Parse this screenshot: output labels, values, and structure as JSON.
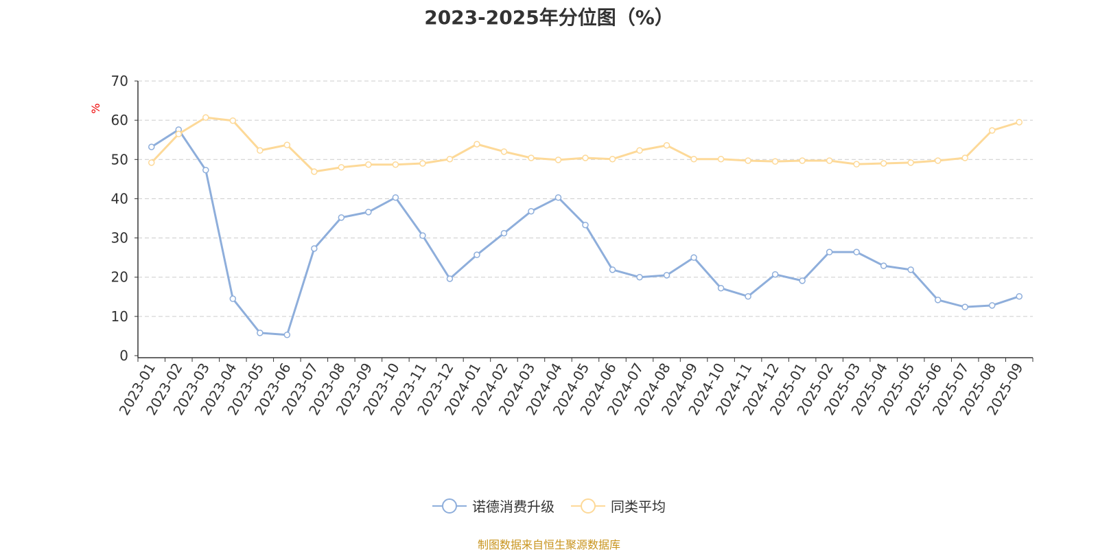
{
  "chart_data": {
    "type": "line",
    "title": "2023-2025年分位图（%）",
    "ylabel": "%",
    "xlabel": "",
    "ylim": [
      0,
      70
    ],
    "yticks": [
      0,
      10,
      20,
      30,
      40,
      50,
      60,
      70
    ],
    "grid": true,
    "legend_position": "bottom-center",
    "categories": [
      "2023-01",
      "2023-02",
      "2023-03",
      "2023-04",
      "2023-05",
      "2023-06",
      "2023-07",
      "2023-08",
      "2023-09",
      "2023-10",
      "2023-11",
      "2023-12",
      "2024-01",
      "2024-02",
      "2024-03",
      "2024-04",
      "2024-05",
      "2024-06",
      "2024-07",
      "2024-08",
      "2024-09",
      "2024-10",
      "2024-11",
      "2024-12",
      "2025-01",
      "2025-02",
      "2025-03",
      "2025-04",
      "2025-05",
      "2025-06",
      "2025-07",
      "2025-08",
      "2025-09"
    ],
    "series": [
      {
        "name": "诺德消费升级",
        "color": "#8eaedb",
        "values": [
          53.2,
          57.6,
          47.3,
          14.5,
          5.8,
          5.3,
          27.3,
          35.2,
          36.6,
          40.3,
          30.6,
          19.6,
          25.7,
          31.2,
          36.8,
          40.3,
          33.3,
          21.9,
          20.0,
          20.5,
          25.0,
          17.2,
          15.1,
          20.7,
          19.1,
          26.4,
          26.4,
          22.9,
          21.9,
          14.2,
          12.4,
          12.8,
          15.1
        ]
      },
      {
        "name": "同类平均",
        "color": "#fdd998",
        "values": [
          49.2,
          56.5,
          60.7,
          59.9,
          52.3,
          53.7,
          46.9,
          48.0,
          48.7,
          48.7,
          49.0,
          50.1,
          53.9,
          52.0,
          50.4,
          49.9,
          50.4,
          50.1,
          52.3,
          53.6,
          50.1,
          50.1,
          49.7,
          49.5,
          49.7,
          49.7,
          48.8,
          49.0,
          49.2,
          49.7,
          50.4,
          57.4,
          59.5
        ]
      }
    ]
  },
  "source": "制图数据来自恒生聚源数据库"
}
